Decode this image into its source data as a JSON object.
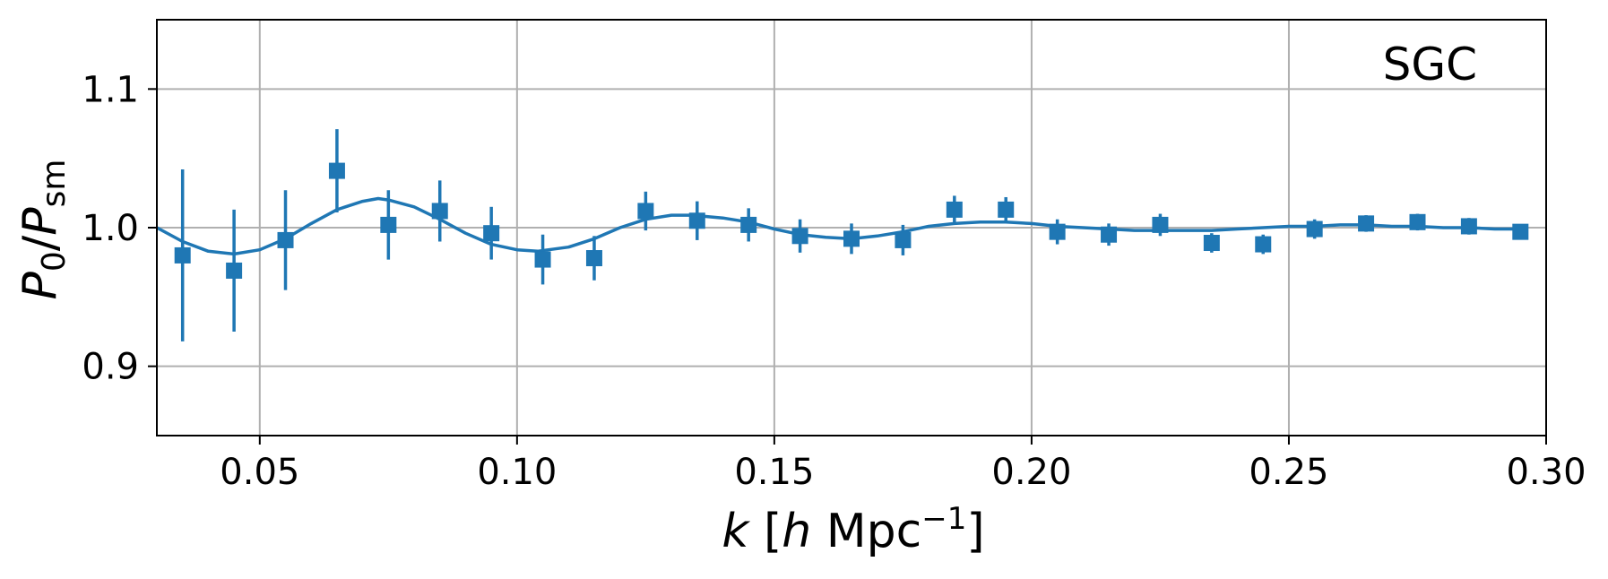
{
  "chart_data": {
    "type": "scatter",
    "panel_label": "SGC",
    "xlabel": {
      "k": "k",
      "open": " [",
      "h": "h",
      "unit": " Mpc",
      "sup": "−1",
      "close": "]"
    },
    "ylabel": {
      "P": "P",
      "sub0": "0",
      "slash": "/",
      "P2": "P",
      "subsm": "sm"
    },
    "xlim": [
      0.03,
      0.3
    ],
    "ylim": [
      0.85,
      1.15
    ],
    "xticks": [
      0.05,
      0.1,
      0.15,
      0.2,
      0.25,
      0.3
    ],
    "xtick_labels": [
      "0.05",
      "0.10",
      "0.15",
      "0.20",
      "0.25",
      "0.30"
    ],
    "yticks": [
      0.9,
      1.0,
      1.1
    ],
    "ytick_labels": [
      "0.9",
      "1.0",
      "1.1"
    ],
    "grid": true,
    "color": "#1f77b4",
    "series": [
      {
        "kind": "errorbar",
        "x": [
          0.035,
          0.045,
          0.055,
          0.065,
          0.075,
          0.085,
          0.095,
          0.105,
          0.115,
          0.125,
          0.135,
          0.145,
          0.155,
          0.165,
          0.175,
          0.185,
          0.195,
          0.205,
          0.215,
          0.225,
          0.235,
          0.245,
          0.255,
          0.265,
          0.275,
          0.285,
          0.295
        ],
        "y": [
          0.98,
          0.969,
          0.991,
          1.041,
          1.002,
          1.012,
          0.996,
          0.977,
          0.978,
          1.012,
          1.005,
          1.002,
          0.994,
          0.992,
          0.991,
          1.013,
          1.013,
          0.997,
          0.995,
          1.002,
          0.989,
          0.988,
          0.999,
          1.003,
          1.004,
          1.001,
          0.997
        ],
        "yerr": [
          0.062,
          0.044,
          0.036,
          0.03,
          0.025,
          0.022,
          0.019,
          0.018,
          0.016,
          0.014,
          0.014,
          0.012,
          0.012,
          0.011,
          0.011,
          0.01,
          0.009,
          0.009,
          0.008,
          0.008,
          0.007,
          0.007,
          0.007,
          0.006,
          0.006,
          0.006,
          0.005
        ]
      },
      {
        "kind": "line",
        "x": [
          0.03,
          0.035,
          0.04,
          0.045,
          0.05,
          0.055,
          0.06,
          0.065,
          0.07,
          0.073,
          0.075,
          0.08,
          0.085,
          0.09,
          0.095,
          0.1,
          0.104,
          0.11,
          0.115,
          0.12,
          0.125,
          0.13,
          0.134,
          0.14,
          0.145,
          0.15,
          0.155,
          0.16,
          0.165,
          0.17,
          0.175,
          0.18,
          0.185,
          0.19,
          0.195,
          0.2,
          0.205,
          0.21,
          0.215,
          0.22,
          0.225,
          0.23,
          0.235,
          0.24,
          0.245,
          0.25,
          0.255,
          0.26,
          0.265,
          0.27,
          0.275,
          0.28,
          0.285,
          0.29,
          0.295
        ],
        "y": [
          1.0,
          0.99,
          0.983,
          0.981,
          0.984,
          0.992,
          1.003,
          1.013,
          1.019,
          1.021,
          1.02,
          1.015,
          1.006,
          0.996,
          0.988,
          0.984,
          0.983,
          0.986,
          0.992,
          1.0,
          1.006,
          1.009,
          1.009,
          1.007,
          1.004,
          0.999,
          0.995,
          0.993,
          0.992,
          0.994,
          0.997,
          1.001,
          1.003,
          1.004,
          1.004,
          1.003,
          1.001,
          1.0,
          0.999,
          0.998,
          0.998,
          0.998,
          0.998,
          0.999,
          1.0,
          1.001,
          1.001,
          1.002,
          1.002,
          1.001,
          1.001,
          1.0,
          1.0,
          0.999,
          0.999
        ]
      }
    ]
  }
}
